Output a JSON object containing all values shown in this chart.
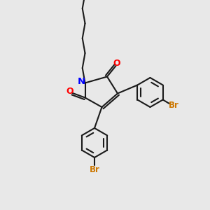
{
  "bg_color": "#e8e8e8",
  "bond_color": "#1a1a1a",
  "nitrogen_color": "#0000ff",
  "oxygen_color": "#ff0000",
  "bromine_color": "#cc7700",
  "bond_width": 1.5,
  "fig_width": 3.0,
  "fig_height": 3.0,
  "dpi": 100,
  "xlim": [
    0,
    10
  ],
  "ylim": [
    0,
    10
  ]
}
